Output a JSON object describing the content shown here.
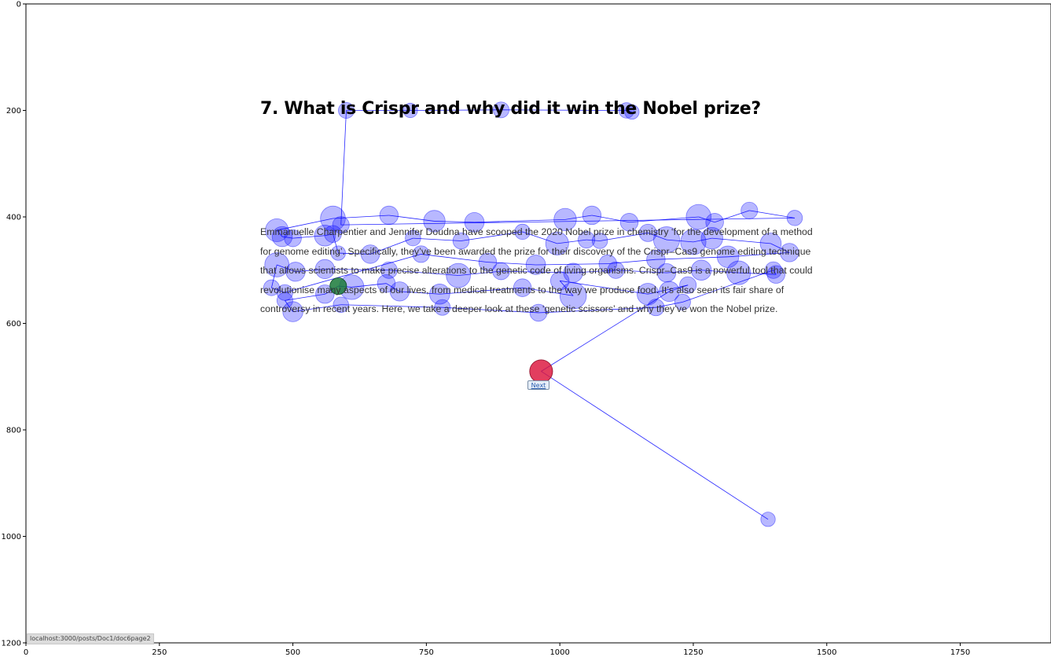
{
  "page": {
    "title": "7. What is Crispr and why did it win the Nobel prize?",
    "paragraph": "Emmanuelle Charpentier and Jennifer Doudna have scooped the 2020 Nobel prize in chemistry ‘for the development of a method for genome editing’. Specifically, they’ve been awarded the prize for their discovery of the Crispr–Cas9 genome editing technique that allows scientists to make precise alterations to the genetic code of living organisms. Crispr–Cas9 is a powerful tool that could revolutionise many aspects of our lives, from medical treatments to the way we produce food. It’s also seen its fair share of controversy in recent years. Here, we take a deeper look at these ‘genetic scissors’ and why they’ve won the Nobel prize.",
    "next_button": "Next",
    "status_url": "localhost:3000/posts/Doc1/doc6page2"
  },
  "chart_data": {
    "type": "scatter",
    "xlim": [
      0,
      1920
    ],
    "ylim": [
      1200,
      0
    ],
    "x_ticks": [
      0,
      250,
      500,
      750,
      1000,
      1250,
      1500,
      1750
    ],
    "y_ticks": [
      0,
      200,
      400,
      600,
      800,
      1000,
      1200
    ],
    "point_color": "#0000ff",
    "line_color": "#0000ff",
    "start_color": "#1a7a3a",
    "end_color": "#dc143c",
    "series": [
      {
        "values": [
          {
            "x": 1390,
            "y": 968,
            "d": 100
          },
          {
            "x": 965,
            "y": 690,
            "d": 350
          },
          {
            "x": 1205,
            "y": 540,
            "d": 250
          },
          {
            "x": 1240,
            "y": 528,
            "d": 150
          },
          {
            "x": 1165,
            "y": 545,
            "d": 300
          },
          {
            "x": 1000,
            "y": 520,
            "d": 200
          },
          {
            "x": 1025,
            "y": 548,
            "d": 500
          },
          {
            "x": 930,
            "y": 533,
            "d": 180
          },
          {
            "x": 775,
            "y": 545,
            "d": 250
          },
          {
            "x": 700,
            "y": 540,
            "d": 220
          },
          {
            "x": 675,
            "y": 525,
            "d": 180
          },
          {
            "x": 610,
            "y": 532,
            "d": 420
          },
          {
            "x": 585,
            "y": 530,
            "d": 200
          },
          {
            "x": 560,
            "y": 545,
            "d": 200
          },
          {
            "x": 485,
            "y": 557,
            "d": 130
          },
          {
            "x": 500,
            "y": 578,
            "d": 250
          },
          {
            "x": 590,
            "y": 565,
            "d": 120
          },
          {
            "x": 780,
            "y": 570,
            "d": 130
          },
          {
            "x": 960,
            "y": 580,
            "d": 160
          },
          {
            "x": 1180,
            "y": 570,
            "d": 150
          },
          {
            "x": 1230,
            "y": 560,
            "d": 130
          },
          {
            "x": 1400,
            "y": 500,
            "d": 150
          },
          {
            "x": 1405,
            "y": 508,
            "d": 180
          },
          {
            "x": 1335,
            "y": 505,
            "d": 380
          },
          {
            "x": 1265,
            "y": 500,
            "d": 250
          },
          {
            "x": 1200,
            "y": 505,
            "d": 200
          },
          {
            "x": 1105,
            "y": 500,
            "d": 150
          },
          {
            "x": 1025,
            "y": 505,
            "d": 220
          },
          {
            "x": 890,
            "y": 502,
            "d": 160
          },
          {
            "x": 810,
            "y": 510,
            "d": 400
          },
          {
            "x": 680,
            "y": 500,
            "d": 150
          },
          {
            "x": 560,
            "y": 498,
            "d": 220
          },
          {
            "x": 505,
            "y": 503,
            "d": 220
          },
          {
            "x": 470,
            "y": 490,
            "d": 400
          },
          {
            "x": 460,
            "y": 533,
            "d": 130
          },
          {
            "x": 485,
            "y": 542,
            "d": 130
          },
          {
            "x": 740,
            "y": 470,
            "d": 150
          },
          {
            "x": 865,
            "y": 485,
            "d": 180
          },
          {
            "x": 955,
            "y": 490,
            "d": 230
          },
          {
            "x": 1090,
            "y": 488,
            "d": 180
          },
          {
            "x": 1180,
            "y": 480,
            "d": 200
          },
          {
            "x": 1315,
            "y": 475,
            "d": 300
          },
          {
            "x": 1430,
            "y": 467,
            "d": 200
          },
          {
            "x": 1395,
            "y": 450,
            "d": 280
          },
          {
            "x": 1285,
            "y": 440,
            "d": 300
          },
          {
            "x": 1250,
            "y": 447,
            "d": 450
          },
          {
            "x": 1200,
            "y": 443,
            "d": 480
          },
          {
            "x": 1165,
            "y": 430,
            "d": 170
          },
          {
            "x": 1075,
            "y": 445,
            "d": 120
          },
          {
            "x": 1050,
            "y": 443,
            "d": 150
          },
          {
            "x": 995,
            "y": 450,
            "d": 350
          },
          {
            "x": 930,
            "y": 428,
            "d": 120
          },
          {
            "x": 815,
            "y": 445,
            "d": 140
          },
          {
            "x": 725,
            "y": 440,
            "d": 120
          },
          {
            "x": 645,
            "y": 470,
            "d": 200
          },
          {
            "x": 585,
            "y": 468,
            "d": 100
          },
          {
            "x": 575,
            "y": 432,
            "d": 160
          },
          {
            "x": 560,
            "y": 435,
            "d": 280
          },
          {
            "x": 500,
            "y": 440,
            "d": 160
          },
          {
            "x": 480,
            "y": 437,
            "d": 250
          },
          {
            "x": 470,
            "y": 425,
            "d": 350
          },
          {
            "x": 575,
            "y": 403,
            "d": 430
          },
          {
            "x": 680,
            "y": 397,
            "d": 200
          },
          {
            "x": 765,
            "y": 408,
            "d": 300
          },
          {
            "x": 840,
            "y": 410,
            "d": 230
          },
          {
            "x": 1010,
            "y": 405,
            "d": 330
          },
          {
            "x": 1060,
            "y": 397,
            "d": 200
          },
          {
            "x": 1130,
            "y": 410,
            "d": 180
          },
          {
            "x": 1260,
            "y": 400,
            "d": 430
          },
          {
            "x": 1290,
            "y": 410,
            "d": 180
          },
          {
            "x": 1355,
            "y": 388,
            "d": 150
          },
          {
            "x": 1440,
            "y": 402,
            "d": 120
          },
          {
            "x": 590,
            "y": 415,
            "d": 150
          },
          {
            "x": 600,
            "y": 200,
            "d": 130
          },
          {
            "x": 720,
            "y": 200,
            "d": 100
          },
          {
            "x": 890,
            "y": 199,
            "d": 130
          },
          {
            "x": 1125,
            "y": 200,
            "d": 120
          },
          {
            "x": 1135,
            "y": 203,
            "d": 100
          }
        ],
        "start_index": 12,
        "end_index": 1
      }
    ]
  }
}
